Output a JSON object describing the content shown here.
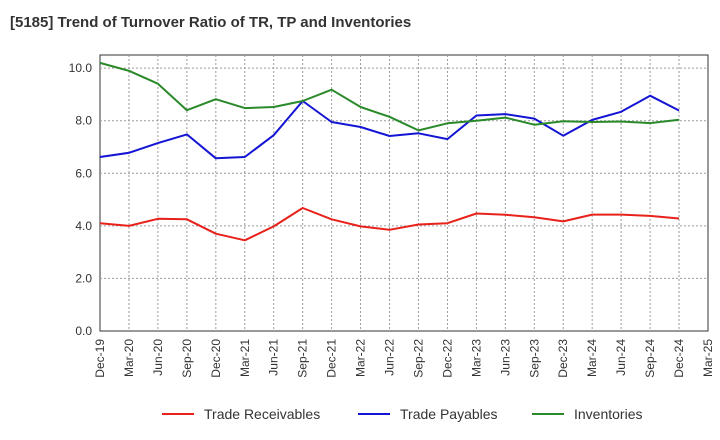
{
  "chart_data": {
    "type": "line",
    "title": "[5185]  Trend of Turnover Ratio of TR, TP and Inventories",
    "x": [
      "Dec-19",
      "Mar-20",
      "Jun-20",
      "Sep-20",
      "Dec-20",
      "Mar-21",
      "Jun-21",
      "Sep-21",
      "Dec-21",
      "Mar-22",
      "Jun-22",
      "Sep-22",
      "Dec-22",
      "Mar-23",
      "Jun-23",
      "Sep-23",
      "Dec-23",
      "Mar-24",
      "Jun-24",
      "Sep-24",
      "Dec-24",
      "Mar-25"
    ],
    "ylim": [
      0,
      10.5
    ],
    "yticks": [
      "0.0",
      "2.0",
      "4.0",
      "6.0",
      "8.0",
      "10.0"
    ],
    "grid": true,
    "legend_position": "bottom",
    "series": [
      {
        "name": "Trade Receivables",
        "color": "#e8211b",
        "values": [
          4.1,
          4.0,
          4.27,
          4.25,
          3.7,
          3.45,
          3.98,
          4.68,
          4.25,
          3.98,
          3.85,
          4.05,
          4.1,
          4.47,
          4.42,
          4.33,
          4.17,
          4.43,
          4.43,
          4.38,
          4.28,
          null
        ]
      },
      {
        "name": "Trade Payables",
        "color": "#1414d4",
        "values": [
          6.62,
          6.78,
          7.15,
          7.48,
          6.57,
          6.62,
          7.45,
          8.75,
          7.95,
          7.76,
          7.42,
          7.52,
          7.3,
          8.2,
          8.25,
          8.08,
          7.43,
          8.03,
          8.34,
          8.95,
          8.39,
          null
        ]
      },
      {
        "name": "Inventories",
        "color": "#2a8a2a",
        "values": [
          10.2,
          9.9,
          9.41,
          8.4,
          8.82,
          8.48,
          8.52,
          8.75,
          9.18,
          8.52,
          8.15,
          7.63,
          7.9,
          8.0,
          8.12,
          7.85,
          7.98,
          7.95,
          7.97,
          7.91,
          8.04,
          null
        ]
      }
    ]
  }
}
